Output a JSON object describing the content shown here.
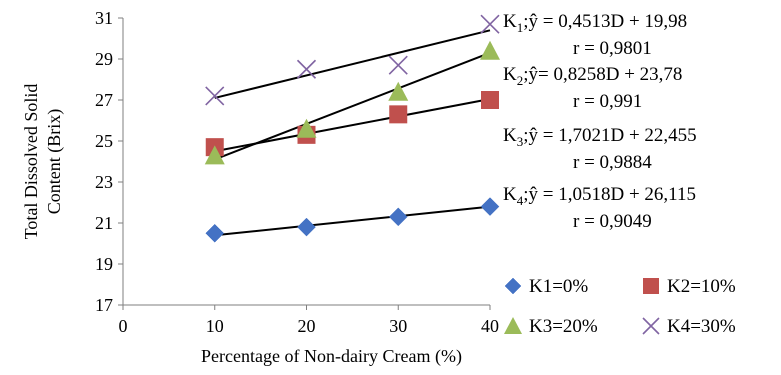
{
  "chart_data": {
    "type": "scatter",
    "xlabel": "Percentage of  Non-dairy Cream (%)",
    "ylabel": [
      "Total Dissolved Solid",
      "Content  (Brix)"
    ],
    "xlim": [
      0,
      40
    ],
    "ylim": [
      17,
      31
    ],
    "x_ticks": [
      "0",
      "10",
      "20",
      "30",
      "40"
    ],
    "y_ticks": [
      "17",
      "19",
      "21",
      "23",
      "25",
      "27",
      "29",
      "31"
    ],
    "grid": false,
    "legend_position": "bottom-right",
    "x": [
      10,
      20,
      30,
      40
    ],
    "series": [
      {
        "name": "K1=0%",
        "marker": "diamond",
        "color": "#4472C4",
        "values": [
          20.5,
          20.8,
          21.3,
          21.8
        ]
      },
      {
        "name": "K2=10%",
        "marker": "square",
        "color": "#C0504D",
        "values": [
          24.7,
          25.3,
          26.3,
          27.0
        ]
      },
      {
        "name": "K3=20%",
        "marker": "triangle",
        "color": "#9BBB59",
        "values": [
          24.3,
          25.6,
          27.4,
          29.4
        ]
      },
      {
        "name": "K4=30%",
        "marker": "x",
        "color": "#8064A2",
        "values": [
          27.2,
          28.5,
          28.7,
          30.7
        ]
      }
    ],
    "trendlines": [
      {
        "series": "K1=0%",
        "from": [
          10,
          20.4
        ],
        "to": [
          40,
          21.8
        ]
      },
      {
        "series": "K2=10%",
        "from": [
          10,
          24.5
        ],
        "to": [
          40,
          27.05
        ]
      },
      {
        "series": "K3=20%",
        "from": [
          10,
          24.1
        ],
        "to": [
          40,
          29.3
        ]
      },
      {
        "series": "K4=30%",
        "from": [
          10,
          27.1
        ],
        "to": [
          40,
          30.4
        ]
      }
    ],
    "equations": [
      {
        "k": "K",
        "sub": "1",
        "eq": ";ŷ = 0,4513D + 19,98",
        "r": "r = 0,9801"
      },
      {
        "k": "K",
        "sub": "2",
        "eq": ";ŷ= 0,8258D + 23,78",
        "r": "r = 0,991"
      },
      {
        "k": "K",
        "sub": "3",
        "eq": ";ŷ = 1,7021D + 22,455",
        "r": "r = 0,9884"
      },
      {
        "k": "K",
        "sub": "4",
        "eq": ";ŷ = 1,0518D + 26,115",
        "r": "r = 0,9049"
      }
    ]
  }
}
